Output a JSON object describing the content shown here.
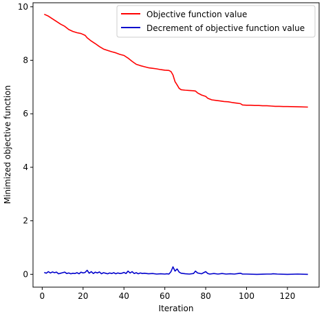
{
  "chart_data": {
    "type": "line",
    "title": "",
    "xlabel": "Iteration",
    "ylabel": "Minimized objective function",
    "xlim": [
      -4.5,
      135.5
    ],
    "ylim": [
      -0.48,
      10.15
    ],
    "xticks": [
      0,
      20,
      40,
      60,
      80,
      100,
      120
    ],
    "yticks": [
      0,
      2,
      4,
      6,
      8,
      10
    ],
    "grid": false,
    "legend_position": "upper right",
    "series": [
      {
        "name": "Objective function value",
        "color": "#ff0000",
        "x": [
          1,
          3,
          5,
          7,
          9,
          11,
          13,
          15,
          17,
          19,
          21,
          22,
          24,
          26,
          28,
          30,
          32,
          34,
          36,
          38,
          40,
          42,
          44,
          46,
          48,
          50,
          52,
          54,
          56,
          58,
          60,
          62,
          63,
          64,
          65,
          66,
          67,
          68,
          70,
          72,
          74,
          75,
          76,
          78,
          80,
          81,
          83,
          85,
          87,
          89,
          91,
          93,
          95,
          97,
          98,
          100,
          102,
          104,
          106,
          108,
          110,
          112,
          114,
          116,
          118,
          120,
          125,
          130
        ],
        "y": [
          9.72,
          9.65,
          9.55,
          9.45,
          9.35,
          9.27,
          9.15,
          9.08,
          9.03,
          9.0,
          8.93,
          8.84,
          8.72,
          8.62,
          8.51,
          8.42,
          8.37,
          8.32,
          8.28,
          8.22,
          8.18,
          8.08,
          7.96,
          7.85,
          7.8,
          7.76,
          7.72,
          7.7,
          7.68,
          7.65,
          7.63,
          7.62,
          7.58,
          7.45,
          7.2,
          7.08,
          6.95,
          6.9,
          6.88,
          6.87,
          6.86,
          6.85,
          6.78,
          6.7,
          6.65,
          6.58,
          6.52,
          6.5,
          6.48,
          6.46,
          6.45,
          6.42,
          6.4,
          6.38,
          6.33,
          6.32,
          6.32,
          6.31,
          6.31,
          6.3,
          6.3,
          6.29,
          6.28,
          6.28,
          6.27,
          6.27,
          6.26,
          6.25
        ]
      },
      {
        "name": "Decrement of objective function value",
        "color": "#0000cc",
        "x": [
          1,
          2,
          3,
          4,
          5,
          6,
          7,
          8,
          9,
          10,
          11,
          12,
          13,
          14,
          15,
          16,
          17,
          18,
          19,
          20,
          21,
          22,
          23,
          24,
          25,
          26,
          27,
          28,
          29,
          30,
          31,
          32,
          33,
          34,
          35,
          36,
          37,
          38,
          39,
          40,
          41,
          42,
          43,
          44,
          45,
          46,
          47,
          48,
          49,
          50,
          52,
          54,
          56,
          58,
          60,
          61,
          62,
          63,
          64,
          65,
          66,
          67,
          68,
          70,
          72,
          74,
          75,
          76,
          78,
          79,
          80,
          81,
          82,
          84,
          86,
          88,
          90,
          92,
          94,
          96,
          97,
          98,
          100,
          105,
          110,
          112,
          113,
          115,
          120,
          125,
          130
        ],
        "y": [
          0.07,
          0.04,
          0.1,
          0.05,
          0.09,
          0.06,
          0.08,
          0.02,
          0.04,
          0.06,
          0.08,
          0.03,
          0.05,
          0.02,
          0.04,
          0.03,
          0.06,
          0.02,
          0.08,
          0.05,
          0.07,
          0.15,
          0.04,
          0.1,
          0.03,
          0.08,
          0.05,
          0.09,
          0.02,
          0.06,
          0.04,
          0.02,
          0.05,
          0.03,
          0.06,
          0.02,
          0.05,
          0.03,
          0.04,
          0.07,
          0.03,
          0.12,
          0.05,
          0.1,
          0.03,
          0.06,
          0.02,
          0.05,
          0.03,
          0.04,
          0.02,
          0.03,
          0.01,
          0.02,
          0.01,
          0.02,
          0.01,
          0.1,
          0.28,
          0.12,
          0.2,
          0.08,
          0.04,
          0.02,
          0.01,
          0.03,
          0.12,
          0.05,
          0.02,
          0.06,
          0.1,
          0.03,
          0.01,
          0.03,
          0.01,
          0.03,
          0.01,
          0.02,
          0.01,
          0.03,
          0.04,
          0.01,
          0.01,
          0.0,
          0.01,
          0.01,
          0.02,
          0.01,
          0.0,
          0.01,
          0.0
        ]
      }
    ]
  }
}
